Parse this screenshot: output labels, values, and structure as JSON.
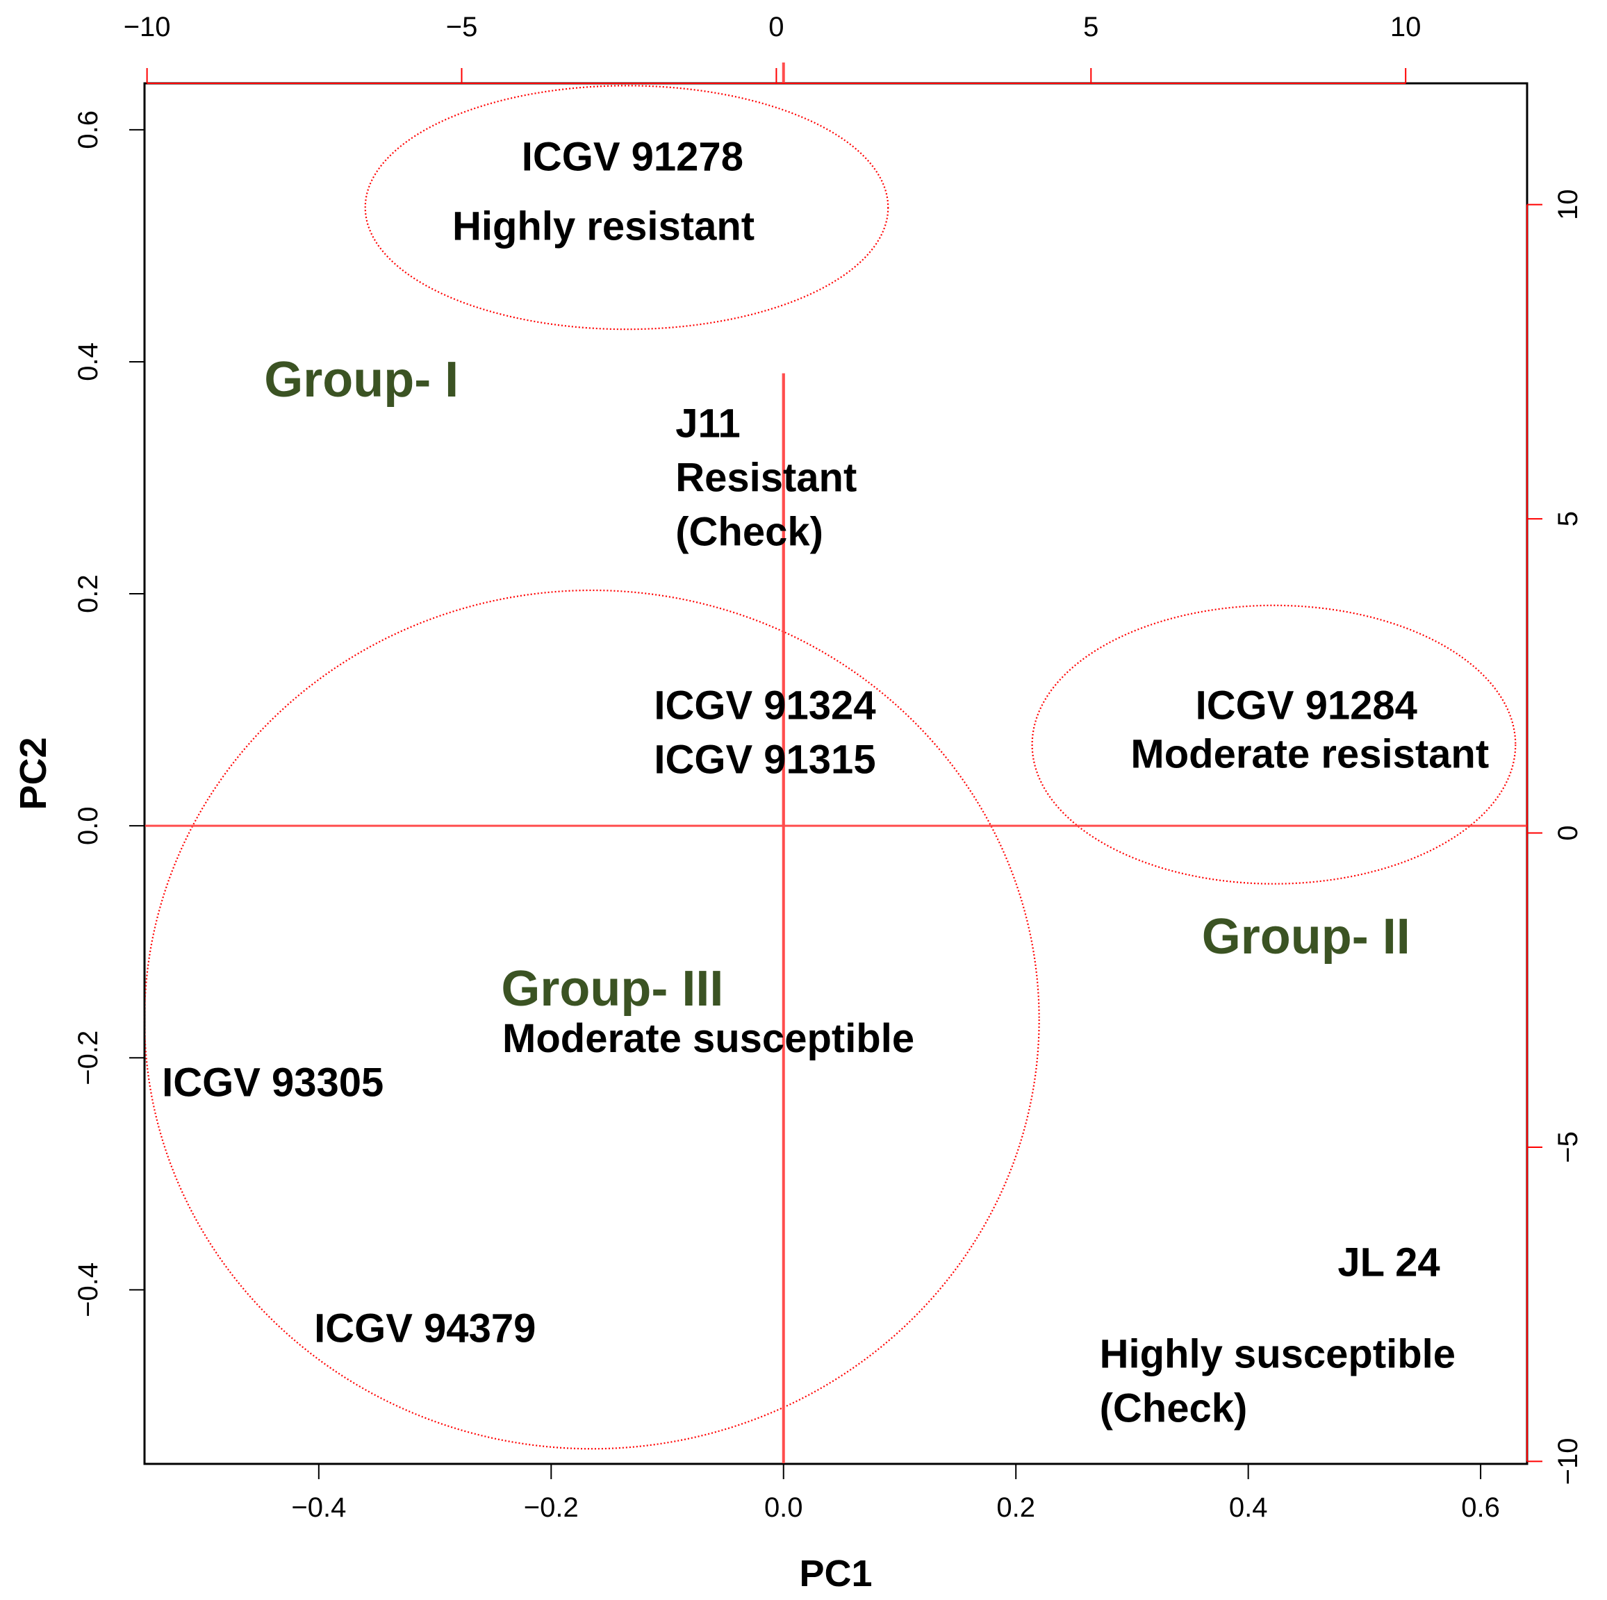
{
  "chart_data": {
    "type": "scatter",
    "title": "",
    "xlabel": "PC1",
    "ylabel": "PC2",
    "xlim": [
      -0.55,
      0.64
    ],
    "ylim": [
      -0.55,
      0.64
    ],
    "x_ticks": [
      -0.4,
      -0.2,
      0.0,
      0.2,
      0.4,
      0.6
    ],
    "x_tick_labels": [
      "−0.4",
      "−0.2",
      "0.0",
      "0.2",
      "0.4",
      "0.6"
    ],
    "y_ticks": [
      -0.4,
      -0.2,
      0.0,
      0.2,
      0.4,
      0.6
    ],
    "y_tick_labels": [
      "−0.4",
      "−0.2",
      "0.0",
      "0.2",
      "0.4",
      "0.6"
    ],
    "secondary_axes": {
      "range": [
        -10.04,
        11.93
      ],
      "top_ticks": [
        -10,
        -5,
        0,
        5,
        10
      ],
      "top_tick_labels": [
        "−10",
        "−5",
        "0",
        "5",
        "10"
      ],
      "right_ticks": [
        -10,
        -5,
        0,
        5,
        10
      ],
      "right_tick_labels": [
        "−10",
        "−5",
        "0",
        "5",
        "10"
      ],
      "color": "#ff0000"
    },
    "reference_lines": {
      "x": 0,
      "y": 0,
      "color": "#ff4d4d"
    },
    "biplot_vectors": [
      {
        "x": 0.0,
        "y": 0.39
      }
    ],
    "annotations": [
      {
        "lines": [
          "ICGV 91278"
        ],
        "x": -0.13,
        "y": 0.565,
        "anchor": "middle",
        "kind": "genotype"
      },
      {
        "lines": [
          "Highly resistant"
        ],
        "x": -0.155,
        "y": 0.505,
        "anchor": "middle",
        "kind": "genotype"
      },
      {
        "lines": [
          "J11",
          "Resistant",
          "(Check)"
        ],
        "x": -0.093,
        "y": 0.335,
        "anchor": "start",
        "kind": "genotype"
      },
      {
        "lines": [
          "ICGV 91324",
          "ICGV 91315"
        ],
        "x": -0.016,
        "y": 0.092,
        "anchor": "middle",
        "kind": "genotype"
      },
      {
        "lines": [
          "ICGV 91284"
        ],
        "x": 0.45,
        "y": 0.092,
        "anchor": "middle",
        "kind": "genotype"
      },
      {
        "lines": [
          "Moderate resistant"
        ],
        "x": 0.453,
        "y": 0.05,
        "anchor": "middle",
        "kind": "genotype"
      },
      {
        "lines": [
          "Moderate susceptible"
        ],
        "x": -0.242,
        "y": -0.195,
        "anchor": "start",
        "kind": "genotype"
      },
      {
        "lines": [
          "ICGV 93305"
        ],
        "x": -0.535,
        "y": -0.233,
        "anchor": "start",
        "kind": "genotype"
      },
      {
        "lines": [
          "ICGV 94379"
        ],
        "x": -0.404,
        "y": -0.445,
        "anchor": "start",
        "kind": "genotype"
      },
      {
        "lines": [
          "JL 24"
        ],
        "x": 0.521,
        "y": -0.388,
        "anchor": "middle",
        "kind": "genotype"
      },
      {
        "lines": [
          "Highly susceptible",
          "(Check)"
        ],
        "x": 0.272,
        "y": -0.467,
        "anchor": "start",
        "kind": "genotype"
      },
      {
        "lines": [
          "Group- I"
        ],
        "x": -0.447,
        "y": 0.37,
        "anchor": "start",
        "kind": "group"
      },
      {
        "lines": [
          "Group- II"
        ],
        "x": 0.36,
        "y": -0.11,
        "anchor": "start",
        "kind": "group"
      },
      {
        "lines": [
          "Group- III"
        ],
        "x": -0.243,
        "y": -0.155,
        "anchor": "start",
        "kind": "group"
      }
    ],
    "ellipses": [
      {
        "cx": -0.135,
        "cy": 0.533,
        "rx": 0.225,
        "ry": 0.105
      },
      {
        "cx": -0.165,
        "cy": -0.167,
        "rx": 0.385,
        "ry": 0.37
      },
      {
        "cx": 0.422,
        "cy": 0.07,
        "rx": 0.208,
        "ry": 0.12
      }
    ],
    "ellipse_color": "#ff0000",
    "group_color": "#3b5323"
  }
}
